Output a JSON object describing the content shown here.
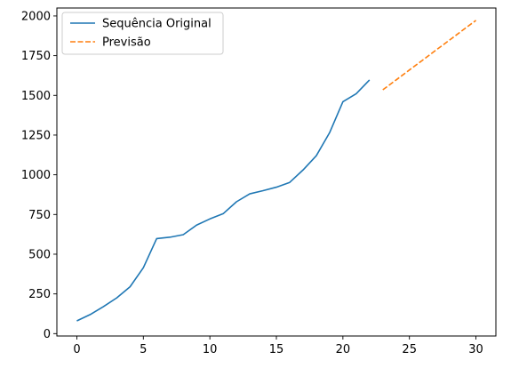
{
  "chart_data": {
    "type": "line",
    "title": "",
    "xlabel": "",
    "ylabel": "",
    "xlim": [
      -1.5,
      31.5
    ],
    "ylim": [
      -15,
      2050
    ],
    "xticks": [
      0,
      5,
      10,
      15,
      20,
      25,
      30
    ],
    "yticks": [
      0,
      250,
      500,
      750,
      1000,
      1250,
      1500,
      1750,
      2000
    ],
    "grid": false,
    "legend_position": "top-left",
    "series": [
      {
        "name": "Sequência Original",
        "color": "#1f77b4",
        "style": "solid",
        "x": [
          0,
          1,
          2,
          3,
          4,
          5,
          6,
          7,
          8,
          9,
          10,
          11,
          12,
          13,
          14,
          15,
          16,
          17,
          18,
          19,
          20,
          21,
          22
        ],
        "values": [
          80,
          120,
          170,
          225,
          295,
          415,
          598,
          607,
          623,
          683,
          722,
          755,
          830,
          880,
          900,
          922,
          952,
          1030,
          1120,
          1265,
          1460,
          1510,
          1597
        ]
      },
      {
        "name": "Previsão",
        "color": "#ff7f0e",
        "style": "dashed",
        "x": [
          23,
          24,
          25,
          26,
          27,
          28,
          29,
          30
        ],
        "values": [
          1535,
          1597,
          1660,
          1722,
          1785,
          1847,
          1910,
          1972
        ]
      }
    ]
  }
}
